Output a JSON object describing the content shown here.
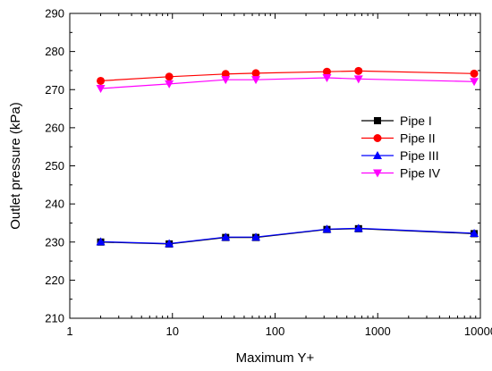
{
  "chart_data": {
    "type": "line",
    "xscale": "log",
    "x": [
      2,
      9.3,
      33,
      65,
      320,
      650,
      8700
    ],
    "xlim": [
      1,
      10000
    ],
    "ylim": [
      210,
      290
    ],
    "xticks": [
      1,
      10,
      100,
      1000,
      10000
    ],
    "xtick_labels": [
      "1",
      "10",
      "100",
      "1000",
      "10000"
    ],
    "yticks": [
      210,
      220,
      230,
      240,
      250,
      260,
      270,
      280,
      290
    ],
    "ytick_labels": [
      "210",
      "220",
      "230",
      "240",
      "250",
      "260",
      "270",
      "280",
      "290"
    ],
    "xlabel": "Maximum Y+",
    "ylabel": "Outlet pressure (kPa)",
    "legend_position": "right",
    "grid": false,
    "series": [
      {
        "name": "Pipe I",
        "color": "#000000",
        "marker": "square",
        "values": [
          230.0,
          229.5,
          231.2,
          231.2,
          233.3,
          233.5,
          232.2
        ]
      },
      {
        "name": "Pipe II",
        "color": "#ff0000",
        "marker": "circle",
        "values": [
          272.3,
          273.4,
          274.1,
          274.3,
          274.7,
          274.9,
          274.2
        ]
      },
      {
        "name": "Pipe III",
        "color": "#0000ff",
        "marker": "triangle-up",
        "values": [
          230.1,
          229.6,
          231.3,
          231.3,
          233.4,
          233.6,
          232.3
        ]
      },
      {
        "name": "Pipe IV",
        "color": "#ff00ff",
        "marker": "triangle-down",
        "values": [
          270.3,
          271.5,
          272.6,
          272.6,
          273.1,
          272.8,
          272.1
        ]
      }
    ]
  }
}
